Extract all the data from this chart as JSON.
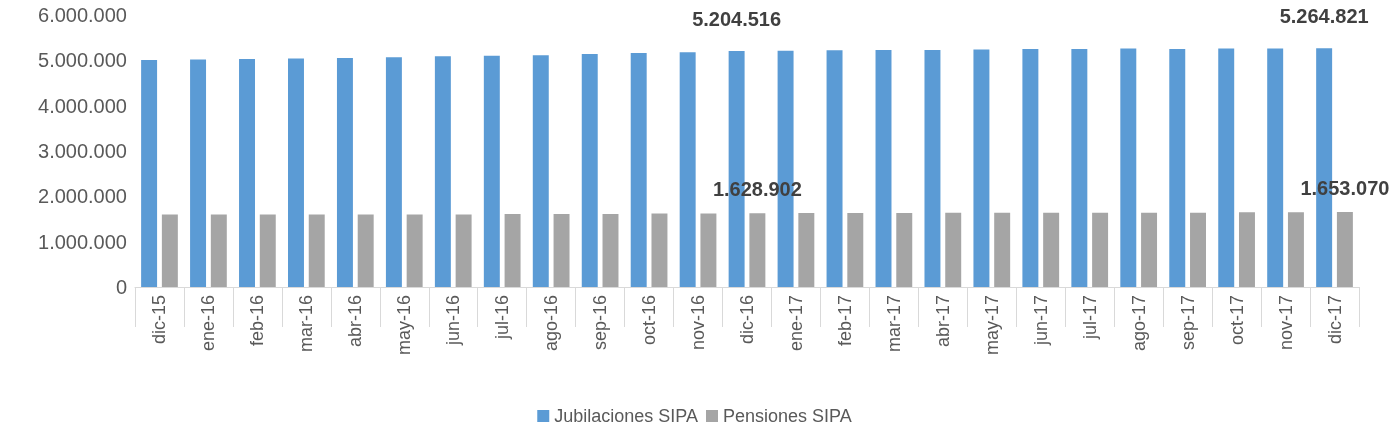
{
  "chart_data": {
    "type": "bar",
    "categories": [
      "dic-15",
      "ene-16",
      "feb-16",
      "mar-16",
      "abr-16",
      "may-16",
      "jun-16",
      "jul-16",
      "ago-16",
      "sep-16",
      "oct-16",
      "nov-16",
      "dic-16",
      "ene-17",
      "feb-17",
      "mar-17",
      "abr-17",
      "may-17",
      "jun-17",
      "jul-17",
      "ago-17",
      "sep-17",
      "oct-17",
      "nov-17",
      "dic-17"
    ],
    "series": [
      {
        "name": "Jubilaciones SIPA",
        "color": "#5b9bd5",
        "values": [
          5010000,
          5020000,
          5030000,
          5040000,
          5050000,
          5070000,
          5090000,
          5100000,
          5110000,
          5140000,
          5160000,
          5180000,
          5204516,
          5210000,
          5220000,
          5230000,
          5230000,
          5240000,
          5250000,
          5250000,
          5260000,
          5250000,
          5260000,
          5260000,
          5264821
        ],
        "value_labels": [
          null,
          null,
          null,
          null,
          null,
          null,
          null,
          null,
          null,
          null,
          null,
          null,
          "5.204.516",
          null,
          null,
          null,
          null,
          null,
          null,
          null,
          null,
          null,
          null,
          null,
          "5.264.821"
        ]
      },
      {
        "name": "Pensiones SIPA",
        "color": "#a5a5a5",
        "values": [
          1600000,
          1600000,
          1600000,
          1600000,
          1600000,
          1600000,
          1600000,
          1610000,
          1610000,
          1610000,
          1620000,
          1620000,
          1628902,
          1630000,
          1630000,
          1630000,
          1640000,
          1640000,
          1640000,
          1640000,
          1640000,
          1640000,
          1650000,
          1650000,
          1653070
        ],
        "value_labels": [
          null,
          null,
          null,
          null,
          null,
          null,
          null,
          null,
          null,
          null,
          null,
          null,
          "1.628.902",
          null,
          null,
          null,
          null,
          null,
          null,
          null,
          null,
          null,
          null,
          null,
          "1.653.070"
        ]
      }
    ],
    "ylim": [
      0,
      6000000
    ],
    "yticks": [
      {
        "value": 0,
        "label": "0"
      },
      {
        "value": 1000000,
        "label": "1.000.000"
      },
      {
        "value": 2000000,
        "label": "2.000.000"
      },
      {
        "value": 3000000,
        "label": "3.000.000"
      },
      {
        "value": 4000000,
        "label": "4.000.000"
      },
      {
        "value": 5000000,
        "label": "5.000.000"
      },
      {
        "value": 6000000,
        "label": "6.000.000"
      }
    ],
    "grid": false,
    "legend": "bottom"
  }
}
